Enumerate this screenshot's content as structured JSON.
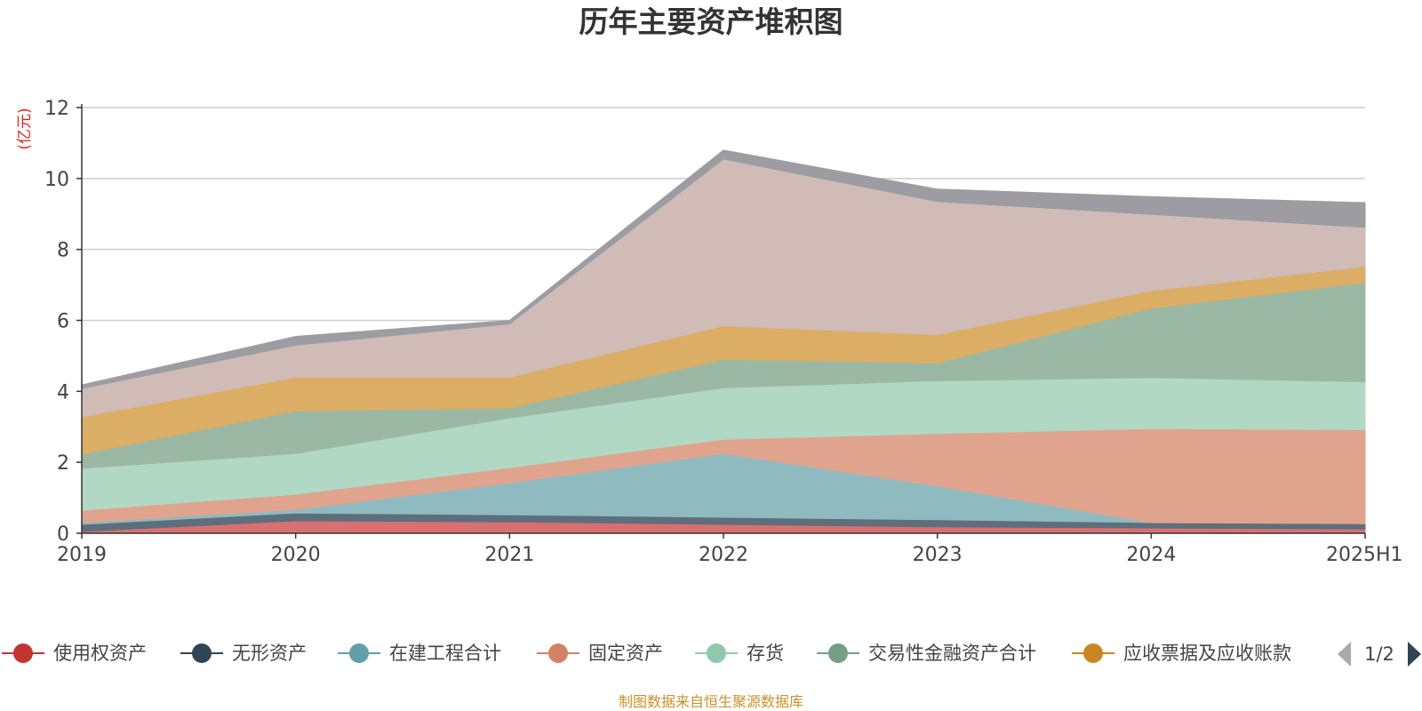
{
  "chart_data": {
    "type": "area",
    "stacked": true,
    "title": "历年主要资产堆积图",
    "ylabel": "(亿元)",
    "ylim": [
      0,
      12
    ],
    "yticks": [
      0,
      2,
      4,
      6,
      8,
      10,
      12
    ],
    "grid": true,
    "legend_position": "bottom",
    "categories": [
      "2019",
      "2020",
      "2021",
      "2022",
      "2023",
      "2024",
      "2025H1"
    ],
    "series": [
      {
        "name": "使用权资产",
        "color": "#d9706f",
        "values": [
          0.05,
          0.35,
          0.32,
          0.25,
          0.18,
          0.15,
          0.12
        ]
      },
      {
        "name": "无形资产",
        "color": "#5e6e7c",
        "values": [
          0.2,
          0.22,
          0.2,
          0.2,
          0.2,
          0.15,
          0.15
        ]
      },
      {
        "name": "在建工程合计",
        "color": "#8fbac0",
        "values": [
          0.05,
          0.1,
          0.9,
          1.8,
          0.95,
          0.0,
          0.0
        ]
      },
      {
        "name": "固定资产",
        "color": "#e0a48e",
        "values": [
          0.35,
          0.43,
          0.43,
          0.4,
          1.48,
          2.65,
          2.65
        ]
      },
      {
        "name": "存货",
        "color": "#b1d8c5",
        "values": [
          1.18,
          1.15,
          1.4,
          1.45,
          1.49,
          1.44,
          1.35
        ]
      },
      {
        "name": "交易性金融资产合计",
        "color": "#9ab8a4",
        "values": [
          0.4,
          1.2,
          0.28,
          0.8,
          0.5,
          1.95,
          2.8
        ]
      },
      {
        "name": "应收票据及应收账款",
        "color": "#dcad65",
        "values": [
          1.05,
          0.95,
          0.87,
          0.95,
          0.8,
          0.5,
          0.45
        ]
      },
      {
        "name": "",
        "color": "#d0bbb6",
        "values": [
          0.8,
          0.9,
          1.5,
          4.7,
          3.75,
          2.15,
          1.1
        ]
      },
      {
        "name": "",
        "color": "#9c9ca2",
        "values": [
          0.1,
          0.25,
          0.1,
          0.25,
          0.35,
          0.5,
          0.7
        ]
      }
    ],
    "legend": {
      "items": [
        {
          "name": "使用权资产",
          "color": "#c23531"
        },
        {
          "name": "无形资产",
          "color": "#2f4554"
        },
        {
          "name": "在建工程合计",
          "color": "#61a0a8"
        },
        {
          "name": "固定资产",
          "color": "#d48265"
        },
        {
          "name": "存货",
          "color": "#91c7ae"
        },
        {
          "name": "交易性金融资产合计",
          "color": "#749f83"
        },
        {
          "name": "应收票据及应收账款",
          "color": "#ca8622"
        }
      ],
      "page_indicator": "1/2"
    },
    "source_note": "制图数据来自恒生聚源数据库"
  }
}
